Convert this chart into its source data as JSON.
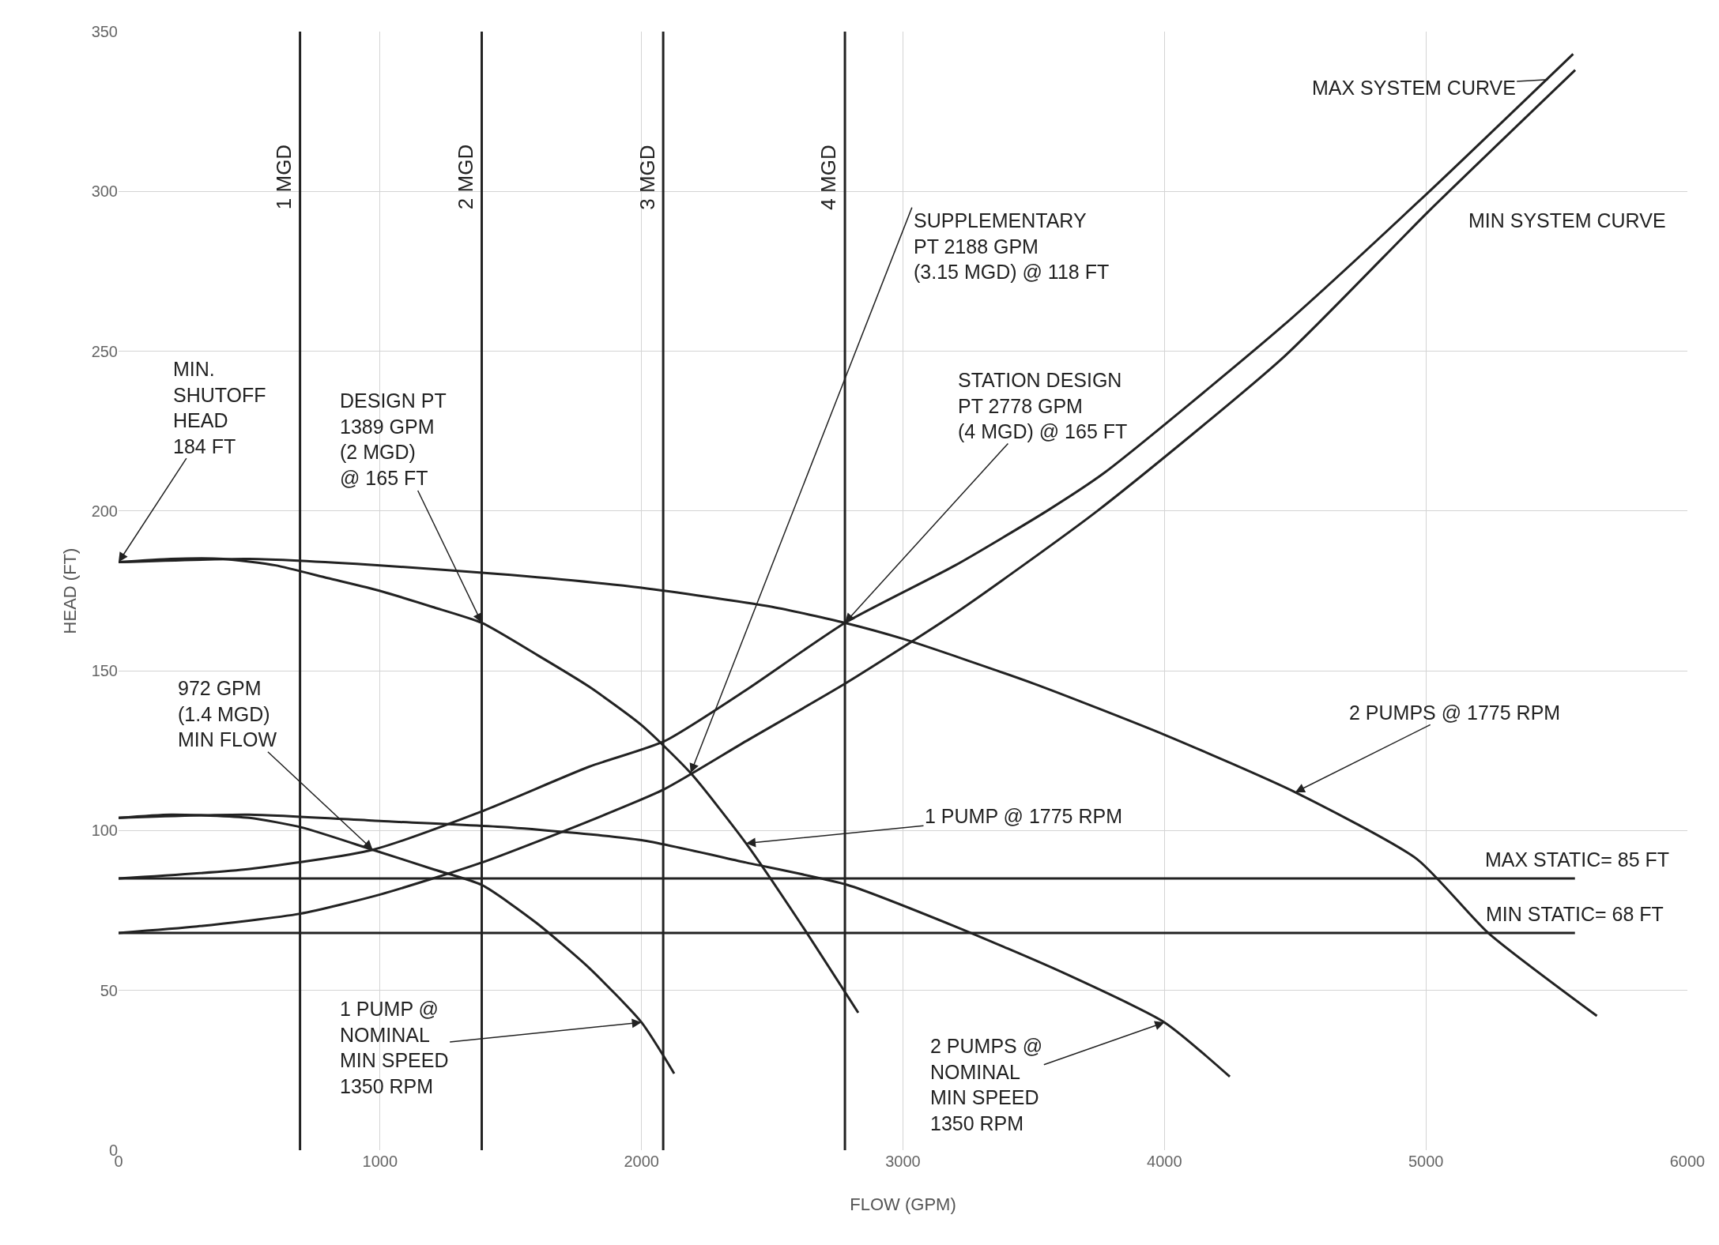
{
  "chart_data": {
    "type": "line",
    "xlabel": "FLOW (GPM)",
    "ylabel": "HEAD (FT)",
    "xlim": [
      0,
      6000
    ],
    "xticks": [
      0,
      1000,
      2000,
      3000,
      4000,
      5000,
      6000
    ],
    "ylim": [
      0,
      350
    ],
    "yticks": [
      0,
      50,
      100,
      150,
      200,
      250,
      300,
      350
    ],
    "grid": true,
    "marker": "none",
    "line_style": "solid",
    "series": [
      {
        "color": "#222222",
        "x": [
          0,
          200,
          400,
          600,
          800,
          1000,
          1200,
          1389,
          1600,
          1800,
          2000,
          2188,
          2400,
          2600,
          2829
        ],
        "values": [
          184,
          185,
          185,
          183,
          179,
          175,
          170,
          165,
          155,
          145,
          133,
          118,
          96,
          72,
          43
        ]
      },
      {
        "color": "#222222",
        "x": [
          0,
          500,
          1000,
          1500,
          2000,
          2500,
          2778,
          3000,
          3500,
          4000,
          4500,
          4967,
          5238,
          5654
        ],
        "values": [
          184,
          185,
          183,
          180,
          176,
          170,
          165,
          160,
          146,
          130,
          112,
          91,
          68,
          42
        ]
      },
      {
        "color": "#222222",
        "x": [
          0,
          200,
          500,
          700,
          972,
          1200,
          1389,
          1600,
          1800,
          2000,
          2125
        ],
        "values": [
          104,
          105,
          104,
          101,
          94,
          88,
          83,
          71,
          57,
          40,
          24
        ]
      },
      {
        "color": "#222222",
        "x": [
          0,
          500,
          1000,
          1500,
          2000,
          2400,
          2788,
          3200,
          3600,
          4000,
          4250
        ],
        "values": [
          104,
          105,
          103,
          101,
          97,
          90,
          83,
          70,
          56,
          40,
          23
        ]
      },
      {
        "color": "#222222",
        "x": [
          0,
          500,
          972,
          1389,
          1800,
          2088,
          2400,
          2778,
          3200,
          3550,
          3771,
          4454,
          5013,
          5563
        ],
        "values": [
          85,
          88,
          94,
          106,
          120,
          128,
          144,
          165,
          183,
          200,
          212,
          258,
          300,
          343
        ]
      },
      {
        "color": "#222222",
        "x": [
          0,
          300,
          694,
          1000,
          1389,
          1800,
          2088,
          2400,
          2779,
          3200,
          3743,
          4454,
          5013,
          5571
        ],
        "values": [
          68,
          70,
          74,
          80,
          90,
          103,
          113,
          128,
          146,
          168,
          200,
          248,
          294,
          338
        ]
      },
      {
        "color": "#222222",
        "x": [
          0,
          5570
        ],
        "values": [
          85,
          85
        ]
      },
      {
        "color": "#222222",
        "x": [
          0,
          5570
        ],
        "values": [
          68,
          68
        ]
      }
    ],
    "ref_lines": [
      {
        "axis": "x",
        "value": 694,
        "label": "1 MGD",
        "color": "#222222"
      },
      {
        "axis": "x",
        "value": 1389,
        "label": "2 MGD",
        "color": "#222222"
      },
      {
        "axis": "x",
        "value": 2083,
        "label": "3 MGD",
        "color": "#222222"
      },
      {
        "axis": "x",
        "value": 2778,
        "label": "4 MGD",
        "color": "#222222"
      }
    ],
    "annotations": [
      {
        "text": "MIN.\nSHUTOFF\nHEAD\n184 FT",
        "x": 0,
        "y": 184
      },
      {
        "text": "DESIGN PT\n1389 GPM\n(2 MGD)\n@ 165 FT",
        "x": 1389,
        "y": 165
      },
      {
        "text": "972 GPM\n(1.4 MGD)\nMIN FLOW",
        "x": 972,
        "y": 94
      },
      {
        "text": "SUPPLEMENTARY\nPT 2188 GPM\n(3.15 MGD) @ 118 FT",
        "x": 2188,
        "y": 118
      },
      {
        "text": "STATION DESIGN\nPT 2778 GPM\n(4 MGD) @ 165 FT",
        "x": 2778,
        "y": 165
      },
      {
        "text": "2 PUMPS @ 1775 RPM",
        "x": 4500,
        "y": 112
      },
      {
        "text": "1 PUMP @ 1775 RPM",
        "x": 2400,
        "y": 96
      },
      {
        "text": "1 PUMP @\nNOMINAL\nMIN SPEED\n1350 RPM",
        "x": 2000,
        "y": 40
      },
      {
        "text": "2 PUMPS @\nNOMINAL\nMIN SPEED\n1350 RPM",
        "x": 4000,
        "y": 40
      },
      {
        "text": "MAX SYSTEM CURVE",
        "x": 5467,
        "y": 335
      },
      {
        "text": "MIN SYSTEM CURVE",
        "x": 5013,
        "y": 294
      },
      {
        "text": "MAX STATIC= 85 FT",
        "x": 5570,
        "y": 85
      },
      {
        "text": "MIN STATIC= 68 FT",
        "x": 5570,
        "y": 68
      }
    ]
  }
}
